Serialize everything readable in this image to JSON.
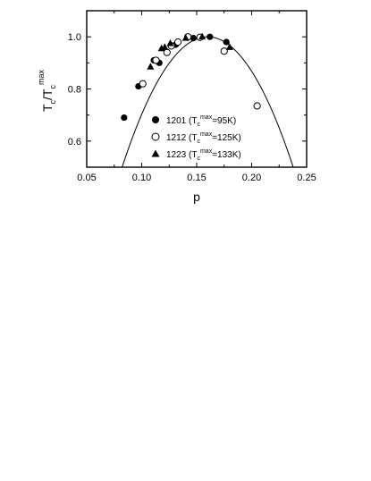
{
  "chart_data": {
    "type": "scatter",
    "xlabel": "p",
    "ylabel": {
      "main": "T",
      "sub1": "c",
      "slash": "/T",
      "sub2": "c",
      "sup": "max"
    },
    "xlim": [
      0.05,
      0.25
    ],
    "ylim": [
      0.5,
      1.1
    ],
    "x_ticks": [
      "0.05",
      "0.10",
      "0.15",
      "0.20",
      "0.25"
    ],
    "x_tick_values": [
      0.05,
      0.1,
      0.15,
      0.2,
      0.25
    ],
    "y_ticks": [
      "0.6",
      "0.8",
      "1.0"
    ],
    "y_tick_values": [
      0.6,
      0.8,
      1.0
    ],
    "curve": {
      "equation": "1 - 82.6*(p-0.16)^2",
      "x_range": [
        0.05,
        0.25
      ]
    },
    "series": [
      {
        "name_parts": {
          "prefix": "1201 (T",
          "sub": "c",
          "sup": "max",
          "suffix": "=95K)"
        },
        "marker": "filled-circle",
        "points": [
          [
            0.084,
            0.69
          ],
          [
            0.097,
            0.81
          ],
          [
            0.111,
            0.91
          ],
          [
            0.116,
            0.9
          ],
          [
            0.131,
            0.97
          ],
          [
            0.147,
            0.995
          ],
          [
            0.162,
            1.0
          ],
          [
            0.177,
            0.98
          ]
        ]
      },
      {
        "name_parts": {
          "prefix": "1212 (T",
          "sub": "c",
          "sup": "max",
          "suffix": "=125K)"
        },
        "marker": "open-circle",
        "points": [
          [
            0.101,
            0.82
          ],
          [
            0.113,
            0.91
          ],
          [
            0.123,
            0.94
          ],
          [
            0.127,
            0.965
          ],
          [
            0.133,
            0.98
          ],
          [
            0.142,
            1.0
          ],
          [
            0.153,
            0.998
          ],
          [
            0.175,
            0.945
          ],
          [
            0.205,
            0.735
          ]
        ]
      },
      {
        "name_parts": {
          "prefix": "1223 (T",
          "sub": "c",
          "sup": "max",
          "suffix": "=133K)"
        },
        "marker": "filled-triangle",
        "points": [
          [
            0.108,
            0.885
          ],
          [
            0.118,
            0.955
          ],
          [
            0.121,
            0.96
          ],
          [
            0.126,
            0.975
          ],
          [
            0.14,
            0.995
          ],
          [
            0.155,
            1.0
          ],
          [
            0.18,
            0.96
          ]
        ]
      }
    ],
    "grid": false,
    "legend": "bottom-center"
  }
}
